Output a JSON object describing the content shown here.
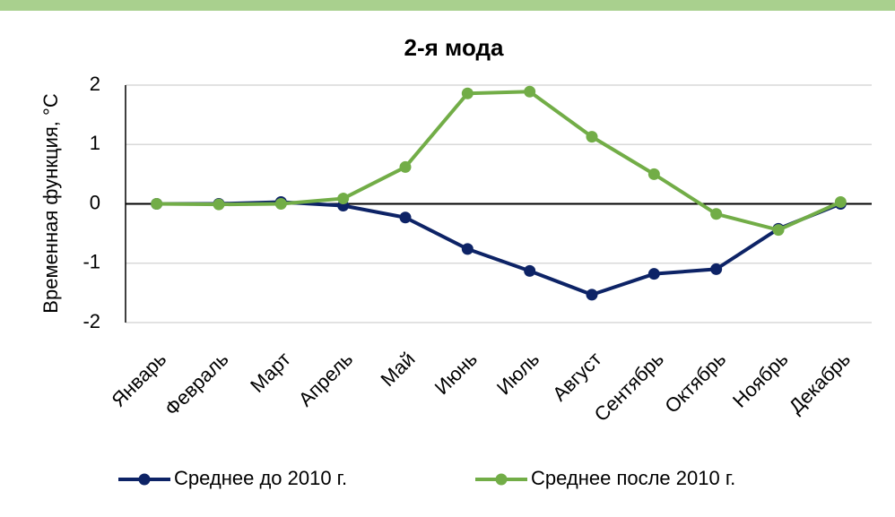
{
  "chart_data": {
    "type": "line",
    "title": "2-я мода",
    "y_label": "Временная функция, °C",
    "categories": [
      "Январь",
      "Февраль",
      "Март",
      "Апрель",
      "Май",
      "Июнь",
      "Июль",
      "Август",
      "Сентябрь",
      "Октябрь",
      "Ноябрь",
      "Декабрь"
    ],
    "series": [
      {
        "name": "Среднее до 2010 г.",
        "color": "#0d2366",
        "values": [
          0,
          0,
          0.03,
          -0.03,
          -0.23,
          -0.76,
          -1.13,
          -1.53,
          -1.18,
          -1.1,
          -0.42,
          0
        ]
      },
      {
        "name": "Среднее после 2010 г.",
        "color": "#72ad47",
        "values": [
          0,
          -0.01,
          0,
          0.09,
          0.62,
          1.86,
          1.89,
          1.13,
          0.5,
          -0.17,
          -0.44,
          0.03
        ]
      }
    ],
    "ylim": [
      -2,
      2
    ],
    "yticks": [
      -2,
      -1,
      0,
      1,
      2
    ],
    "grid": true,
    "legend": "bottom"
  }
}
